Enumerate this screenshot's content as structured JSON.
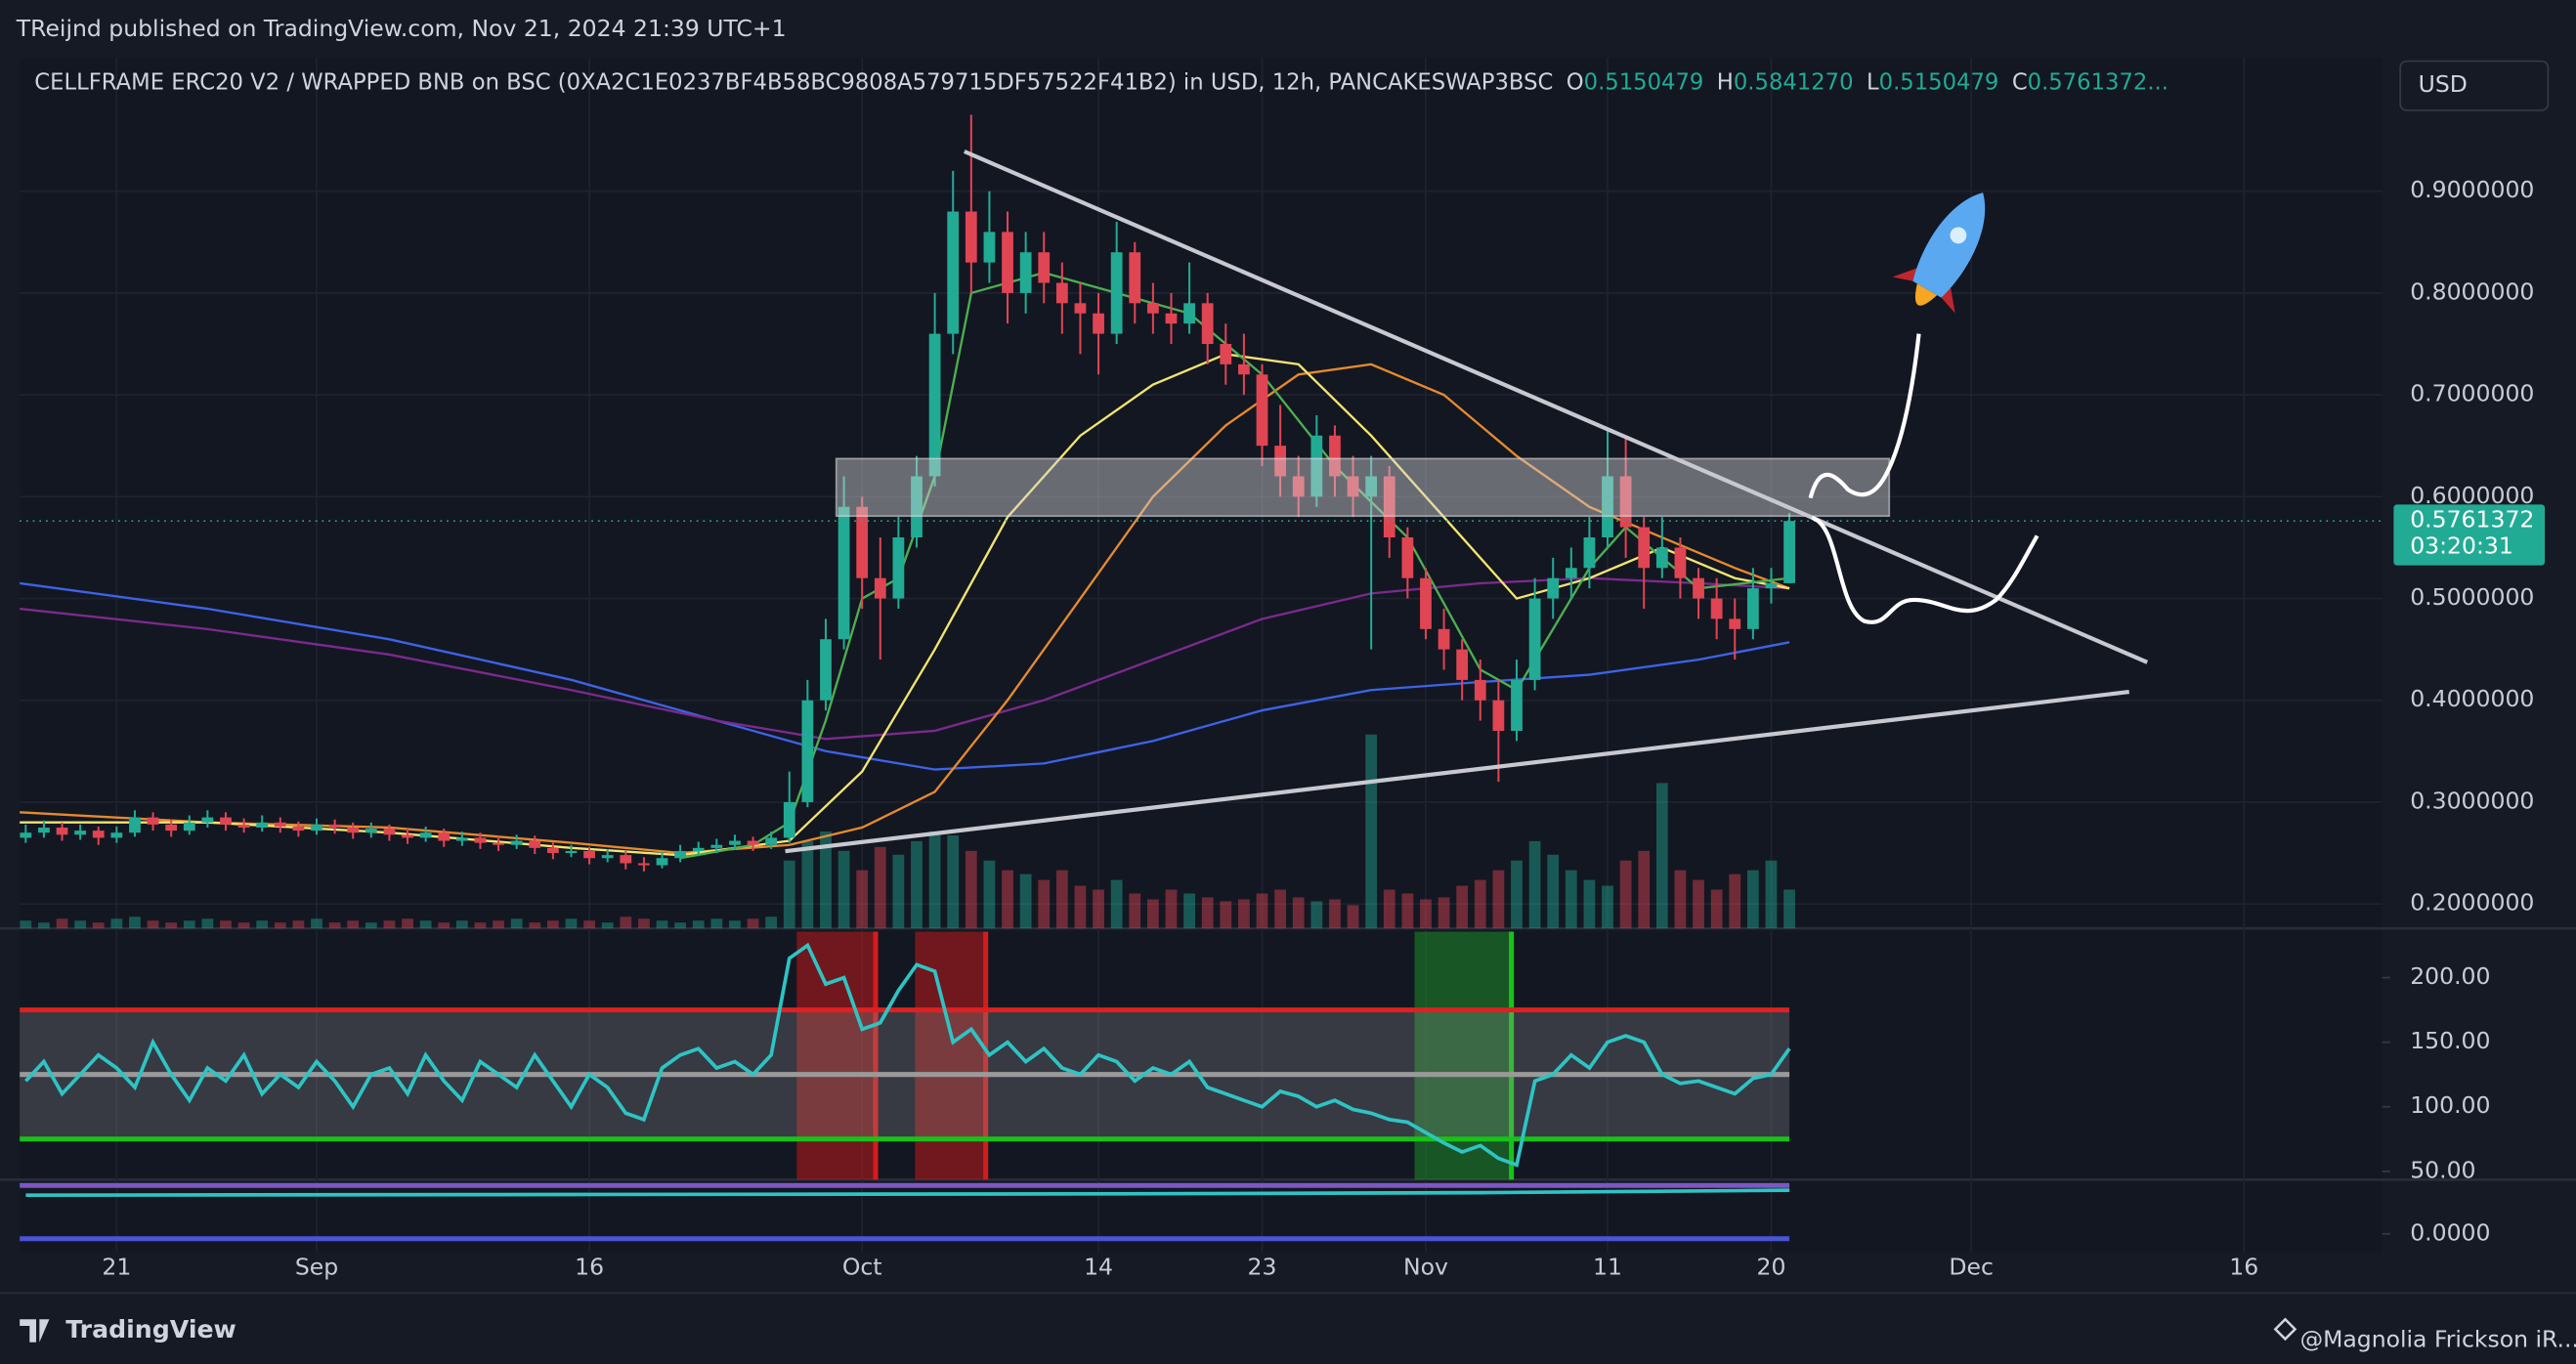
{
  "header": {
    "publisher": "TReijnd published on TradingView.com, Nov 21, 2024 21:39 UTC+1",
    "symbol": "CELLFRAME ERC20 V2 / WRAPPED BNB on BSC (0XA2C1E0237BF4B58BC9808A579715DF57522F41B2) in USD, 12h, PANCAKESWAP3BSC",
    "legend": [
      {
        "key": "O",
        "value": "0.5150479"
      },
      {
        "key": "H",
        "value": "0.5841270"
      },
      {
        "key": "L",
        "value": "0.5150479"
      },
      {
        "key": "C",
        "value": "0.5761372..."
      }
    ],
    "currency_button": "USD",
    "countdown": "03:20:31",
    "brand": "TradingView",
    "watermark": "@Magnolia Frickson iR..."
  },
  "chart_data": [
    {
      "type": "candlestick",
      "up_color": "#22ab94",
      "down_color": "#e04553",
      "grid": true,
      "xlim": [
        -0.33,
        129.6
      ],
      "ylim": [
        0.176,
        1.031
      ],
      "xticks": [
        {
          "value": 5,
          "label": "21"
        },
        {
          "value": 16,
          "label": "Sep"
        },
        {
          "value": 31,
          "label": "16"
        },
        {
          "value": 46,
          "label": "Oct"
        },
        {
          "value": 59,
          "label": "14"
        },
        {
          "value": 68,
          "label": "23"
        },
        {
          "value": 77,
          "label": "Nov"
        },
        {
          "value": 87,
          "label": "11"
        },
        {
          "value": 96,
          "label": "20"
        },
        {
          "value": 107,
          "label": "Dec"
        },
        {
          "value": 122,
          "label": "16"
        }
      ],
      "yticks": [
        {
          "value": 0.9,
          "label": "0.9000000"
        },
        {
          "value": 0.8,
          "label": "0.8000000"
        },
        {
          "value": 0.7,
          "label": "0.7000000"
        },
        {
          "value": 0.6,
          "label": "0.6000000"
        },
        {
          "value": 0.5,
          "label": "0.5000000"
        },
        {
          "value": 0.4,
          "label": "0.4000000"
        },
        {
          "value": 0.3,
          "label": "0.3000000"
        },
        {
          "value": 0.2,
          "label": "0.2000000"
        }
      ],
      "ohlc": [
        [
          0.265,
          0.278,
          0.26,
          0.27
        ],
        [
          0.27,
          0.282,
          0.265,
          0.275
        ],
        [
          0.275,
          0.28,
          0.262,
          0.268
        ],
        [
          0.268,
          0.278,
          0.263,
          0.272
        ],
        [
          0.272,
          0.276,
          0.258,
          0.265
        ],
        [
          0.265,
          0.276,
          0.26,
          0.27
        ],
        [
          0.27,
          0.292,
          0.266,
          0.285
        ],
        [
          0.285,
          0.29,
          0.272,
          0.278
        ],
        [
          0.278,
          0.283,
          0.266,
          0.272
        ],
        [
          0.272,
          0.287,
          0.268,
          0.28
        ],
        [
          0.28,
          0.292,
          0.275,
          0.285
        ],
        [
          0.285,
          0.29,
          0.272,
          0.278
        ],
        [
          0.278,
          0.284,
          0.27,
          0.275
        ],
        [
          0.275,
          0.287,
          0.271,
          0.28
        ],
        [
          0.28,
          0.285,
          0.27,
          0.276
        ],
        [
          0.276,
          0.281,
          0.266,
          0.272
        ],
        [
          0.272,
          0.284,
          0.268,
          0.278
        ],
        [
          0.278,
          0.283,
          0.269,
          0.275
        ],
        [
          0.275,
          0.28,
          0.264,
          0.27
        ],
        [
          0.27,
          0.28,
          0.265,
          0.274
        ],
        [
          0.274,
          0.278,
          0.262,
          0.268
        ],
        [
          0.268,
          0.274,
          0.259,
          0.265
        ],
        [
          0.265,
          0.276,
          0.261,
          0.27
        ],
        [
          0.27,
          0.274,
          0.256,
          0.262
        ],
        [
          0.262,
          0.271,
          0.257,
          0.265
        ],
        [
          0.265,
          0.27,
          0.254,
          0.26
        ],
        [
          0.26,
          0.266,
          0.252,
          0.258
        ],
        [
          0.258,
          0.268,
          0.254,
          0.262
        ],
        [
          0.262,
          0.267,
          0.249,
          0.255
        ],
        [
          0.255,
          0.261,
          0.244,
          0.25
        ],
        [
          0.25,
          0.258,
          0.246,
          0.252
        ],
        [
          0.252,
          0.256,
          0.239,
          0.245
        ],
        [
          0.245,
          0.254,
          0.241,
          0.248
        ],
        [
          0.248,
          0.252,
          0.234,
          0.24
        ],
        [
          0.24,
          0.246,
          0.232,
          0.238
        ],
        [
          0.238,
          0.251,
          0.235,
          0.245
        ],
        [
          0.245,
          0.258,
          0.241,
          0.252
        ],
        [
          0.252,
          0.261,
          0.247,
          0.255
        ],
        [
          0.255,
          0.264,
          0.25,
          0.258
        ],
        [
          0.258,
          0.268,
          0.253,
          0.262
        ],
        [
          0.262,
          0.266,
          0.252,
          0.258
        ],
        [
          0.258,
          0.271,
          0.254,
          0.265
        ],
        [
          0.265,
          0.33,
          0.26,
          0.3
        ],
        [
          0.3,
          0.42,
          0.295,
          0.4
        ],
        [
          0.4,
          0.48,
          0.39,
          0.46
        ],
        [
          0.46,
          0.62,
          0.45,
          0.59
        ],
        [
          0.59,
          0.6,
          0.49,
          0.52
        ],
        [
          0.52,
          0.56,
          0.44,
          0.5
        ],
        [
          0.5,
          0.58,
          0.49,
          0.56
        ],
        [
          0.56,
          0.64,
          0.55,
          0.62
        ],
        [
          0.62,
          0.8,
          0.61,
          0.76
        ],
        [
          0.76,
          0.92,
          0.74,
          0.88
        ],
        [
          0.88,
          0.975,
          0.8,
          0.83
        ],
        [
          0.83,
          0.9,
          0.81,
          0.86
        ],
        [
          0.86,
          0.88,
          0.77,
          0.8
        ],
        [
          0.8,
          0.86,
          0.78,
          0.84
        ],
        [
          0.84,
          0.86,
          0.79,
          0.81
        ],
        [
          0.81,
          0.83,
          0.76,
          0.79
        ],
        [
          0.79,
          0.81,
          0.74,
          0.78
        ],
        [
          0.78,
          0.8,
          0.72,
          0.76
        ],
        [
          0.76,
          0.87,
          0.75,
          0.84
        ],
        [
          0.84,
          0.85,
          0.77,
          0.79
        ],
        [
          0.79,
          0.81,
          0.76,
          0.78
        ],
        [
          0.78,
          0.8,
          0.75,
          0.77
        ],
        [
          0.77,
          0.83,
          0.76,
          0.79
        ],
        [
          0.79,
          0.8,
          0.73,
          0.75
        ],
        [
          0.75,
          0.77,
          0.71,
          0.73
        ],
        [
          0.73,
          0.76,
          0.7,
          0.72
        ],
        [
          0.72,
          0.73,
          0.63,
          0.65
        ],
        [
          0.65,
          0.69,
          0.6,
          0.62
        ],
        [
          0.62,
          0.64,
          0.58,
          0.6
        ],
        [
          0.6,
          0.68,
          0.59,
          0.66
        ],
        [
          0.66,
          0.67,
          0.6,
          0.62
        ],
        [
          0.62,
          0.64,
          0.58,
          0.6
        ],
        [
          0.6,
          0.64,
          0.45,
          0.62
        ],
        [
          0.62,
          0.63,
          0.54,
          0.56
        ],
        [
          0.56,
          0.57,
          0.5,
          0.52
        ],
        [
          0.52,
          0.53,
          0.46,
          0.47
        ],
        [
          0.47,
          0.49,
          0.43,
          0.45
        ],
        [
          0.45,
          0.46,
          0.4,
          0.42
        ],
        [
          0.42,
          0.44,
          0.38,
          0.4
        ],
        [
          0.4,
          0.42,
          0.32,
          0.37
        ],
        [
          0.37,
          0.44,
          0.36,
          0.42
        ],
        [
          0.42,
          0.52,
          0.41,
          0.5
        ],
        [
          0.5,
          0.54,
          0.48,
          0.52
        ],
        [
          0.52,
          0.55,
          0.5,
          0.53
        ],
        [
          0.53,
          0.58,
          0.51,
          0.56
        ],
        [
          0.56,
          0.665,
          0.55,
          0.62
        ],
        [
          0.62,
          0.66,
          0.54,
          0.57
        ],
        [
          0.57,
          0.58,
          0.49,
          0.53
        ],
        [
          0.53,
          0.58,
          0.52,
          0.55
        ],
        [
          0.55,
          0.56,
          0.5,
          0.52
        ],
        [
          0.52,
          0.53,
          0.48,
          0.5
        ],
        [
          0.5,
          0.52,
          0.46,
          0.48
        ],
        [
          0.48,
          0.5,
          0.44,
          0.47
        ],
        [
          0.47,
          0.53,
          0.46,
          0.51
        ],
        [
          0.51,
          0.53,
          0.495,
          0.515
        ],
        [
          0.5150479,
          0.584127,
          0.5150479,
          0.5761372
        ]
      ],
      "volume": [
        4,
        3,
        5,
        4,
        3,
        5,
        6,
        4,
        3,
        4,
        5,
        4,
        3,
        4,
        3,
        4,
        5,
        3,
        4,
        3,
        4,
        5,
        4,
        3,
        4,
        3,
        4,
        5,
        3,
        4,
        5,
        4,
        3,
        6,
        5,
        4,
        3,
        4,
        5,
        4,
        5,
        6,
        35,
        45,
        50,
        40,
        30,
        42,
        38,
        45,
        50,
        48,
        40,
        35,
        30,
        28,
        25,
        30,
        22,
        20,
        25,
        18,
        15,
        20,
        18,
        16,
        14,
        15,
        18,
        20,
        16,
        14,
        15,
        12,
        100,
        20,
        18,
        15,
        16,
        22,
        25,
        30,
        35,
        45,
        38,
        30,
        25,
        22,
        35,
        40,
        75,
        30,
        25,
        20,
        28,
        30,
        35,
        20
      ],
      "overlays": [
        {
          "color": "#3d63e6",
          "x": [
            -0.33,
            10,
            20,
            30,
            38,
            44,
            50,
            56,
            62,
            68,
            74,
            80,
            86,
            92,
            97
          ],
          "values": [
            0.515,
            0.49,
            0.46,
            0.42,
            0.38,
            0.35,
            0.332,
            0.338,
            0.36,
            0.39,
            0.41,
            0.418,
            0.425,
            0.44,
            0.457
          ]
        },
        {
          "color": "#7b2a8c",
          "x": [
            -0.33,
            10,
            20,
            30,
            38,
            44,
            50,
            56,
            62,
            68,
            74,
            80,
            86,
            92,
            97
          ],
          "values": [
            0.49,
            0.47,
            0.445,
            0.41,
            0.38,
            0.362,
            0.37,
            0.4,
            0.44,
            0.48,
            0.505,
            0.515,
            0.52,
            0.515,
            0.51
          ]
        },
        {
          "color": "#e68a2e",
          "x": [
            -0.33,
            10,
            20,
            30,
            36,
            42,
            46,
            50,
            54,
            58,
            62,
            66,
            70,
            74,
            78,
            82,
            86,
            90,
            94,
            97
          ],
          "values": [
            0.29,
            0.28,
            0.275,
            0.26,
            0.25,
            0.258,
            0.275,
            0.31,
            0.4,
            0.5,
            0.6,
            0.67,
            0.72,
            0.73,
            0.7,
            0.64,
            0.59,
            0.56,
            0.53,
            0.51
          ]
        },
        {
          "color": "#f2e470",
          "x": [
            -0.33,
            10,
            20,
            30,
            36,
            42,
            46,
            50,
            54,
            58,
            62,
            66,
            70,
            74,
            78,
            82,
            86,
            90,
            94,
            97
          ],
          "values": [
            0.28,
            0.28,
            0.27,
            0.255,
            0.248,
            0.262,
            0.33,
            0.45,
            0.58,
            0.66,
            0.71,
            0.74,
            0.73,
            0.66,
            0.58,
            0.5,
            0.52,
            0.55,
            0.52,
            0.51
          ]
        },
        {
          "color": "#4caf50",
          "x": [
            36,
            40,
            42,
            44,
            46,
            48,
            50,
            52,
            56,
            60,
            64,
            68,
            72,
            76,
            80,
            82,
            84,
            86,
            88,
            92,
            97
          ],
          "values": [
            0.245,
            0.258,
            0.28,
            0.38,
            0.5,
            0.52,
            0.62,
            0.8,
            0.82,
            0.8,
            0.78,
            0.72,
            0.63,
            0.56,
            0.43,
            0.41,
            0.47,
            0.53,
            0.57,
            0.51,
            0.52
          ]
        }
      ]
    },
    {
      "type": "line",
      "color": "#2ec4c4",
      "ylim": [
        43.5,
        235.6
      ],
      "yticks": [
        {
          "value": 200,
          "label": "200.00"
        },
        {
          "value": 150,
          "label": "150.00"
        },
        {
          "value": 100,
          "label": "100.00"
        },
        {
          "value": 50,
          "label": "50.00"
        }
      ],
      "bands": [
        {
          "value": 175,
          "color": "#e02020"
        },
        {
          "value": 125,
          "color": "#9a9a9a"
        },
        {
          "value": 75,
          "color": "#19c219"
        }
      ],
      "values": [
        120,
        135,
        110,
        125,
        140,
        130,
        115,
        150,
        125,
        105,
        130,
        120,
        140,
        110,
        125,
        115,
        135,
        120,
        100,
        125,
        130,
        110,
        140,
        120,
        105,
        135,
        125,
        115,
        140,
        120,
        100,
        125,
        115,
        95,
        90,
        130,
        140,
        145,
        130,
        135,
        125,
        140,
        215,
        225,
        195,
        200,
        160,
        165,
        190,
        210,
        205,
        150,
        160,
        140,
        150,
        135,
        145,
        130,
        125,
        140,
        135,
        120,
        130,
        125,
        135,
        115,
        110,
        105,
        100,
        112,
        108,
        100,
        105,
        98,
        95,
        90,
        88,
        80,
        72,
        65,
        70,
        60,
        55,
        120,
        125,
        140,
        130,
        150,
        155,
        150,
        125,
        118,
        120,
        115,
        110,
        122,
        125,
        145
      ]
    },
    {
      "type": "line",
      "color": "#2ec4c4",
      "ylim": [
        -0.015,
        0.042
      ],
      "yticks": [
        {
          "value": 0,
          "label": "0.0000"
        }
      ],
      "levels": [
        {
          "value": 0.04,
          "color": "#7e57c2"
        },
        {
          "value": -0.004,
          "color": "#4a55d6"
        }
      ],
      "x": [
        0,
        30,
        60,
        80,
        97
      ],
      "values": [
        0.032,
        0.0325,
        0.033,
        0.034,
        0.036
      ]
    }
  ]
}
